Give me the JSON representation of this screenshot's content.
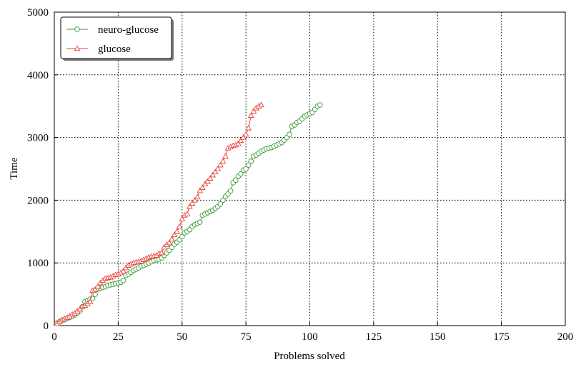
{
  "chart_data": {
    "type": "line",
    "xlabel": "Problems solved",
    "ylabel": "Time",
    "xlim": [
      0,
      200
    ],
    "ylim": [
      0,
      5000
    ],
    "xticks": [
      0,
      25,
      50,
      75,
      100,
      125,
      150,
      175,
      200
    ],
    "yticks": [
      0,
      1000,
      2000,
      3000,
      4000,
      5000
    ],
    "grid": true,
    "legend": "upper-left",
    "series": [
      {
        "name": "neuro-glucose",
        "color": "#3a9a3a",
        "marker": "circle",
        "x": [
          1,
          2,
          3,
          4,
          5,
          6,
          7,
          8,
          9,
          10,
          11,
          12,
          13,
          14,
          15,
          16,
          17,
          18,
          19,
          20,
          21,
          22,
          23,
          24,
          25,
          26,
          27,
          28,
          29,
          30,
          31,
          32,
          33,
          34,
          35,
          36,
          37,
          38,
          39,
          40,
          41,
          42,
          43,
          44,
          45,
          46,
          47,
          48,
          49,
          50,
          51,
          52,
          53,
          54,
          55,
          56,
          57,
          58,
          59,
          60,
          61,
          62,
          63,
          64,
          65,
          66,
          67,
          68,
          69,
          70,
          71,
          72,
          73,
          74,
          75,
          76,
          77,
          78,
          79,
          80,
          81,
          82,
          83,
          84,
          85,
          86,
          87,
          88,
          89,
          90,
          91,
          92,
          93,
          94,
          95,
          96,
          97,
          98,
          99,
          100,
          101,
          102,
          103,
          104
        ],
        "values": [
          40,
          60,
          80,
          95,
          110,
          130,
          150,
          170,
          200,
          230,
          300,
          380,
          400,
          420,
          430,
          500,
          580,
          600,
          610,
          620,
          640,
          650,
          660,
          670,
          680,
          690,
          720,
          800,
          820,
          850,
          880,
          900,
          920,
          950,
          960,
          980,
          1000,
          1020,
          1040,
          1050,
          1060,
          1080,
          1120,
          1160,
          1200,
          1250,
          1300,
          1330,
          1370,
          1420,
          1480,
          1500,
          1530,
          1580,
          1610,
          1630,
          1650,
          1760,
          1780,
          1800,
          1820,
          1840,
          1870,
          1900,
          1940,
          2000,
          2060,
          2100,
          2150,
          2280,
          2320,
          2380,
          2420,
          2480,
          2500,
          2560,
          2620,
          2700,
          2720,
          2750,
          2780,
          2800,
          2820,
          2830,
          2840,
          2860,
          2880,
          2900,
          2920,
          2960,
          3000,
          3050,
          3180,
          3200,
          3240,
          3260,
          3300,
          3340,
          3360,
          3380,
          3400,
          3450,
          3500,
          3520
        ]
      },
      {
        "name": "glucose",
        "color": "#e8413a",
        "marker": "triangle",
        "x": [
          1,
          2,
          3,
          4,
          5,
          6,
          7,
          8,
          9,
          10,
          11,
          12,
          13,
          14,
          15,
          16,
          17,
          18,
          19,
          20,
          21,
          22,
          23,
          24,
          25,
          26,
          27,
          28,
          29,
          30,
          31,
          32,
          33,
          34,
          35,
          36,
          37,
          38,
          39,
          40,
          41,
          42,
          43,
          44,
          45,
          46,
          47,
          48,
          49,
          50,
          51,
          52,
          53,
          54,
          55,
          56,
          57,
          58,
          59,
          60,
          61,
          62,
          63,
          64,
          65,
          66,
          67,
          68,
          69,
          70,
          71,
          72,
          73,
          74,
          75,
          76,
          77,
          78,
          79,
          80,
          81
        ],
        "values": [
          30,
          60,
          90,
          110,
          130,
          150,
          180,
          200,
          230,
          260,
          300,
          320,
          350,
          380,
          560,
          580,
          620,
          680,
          720,
          750,
          760,
          770,
          790,
          810,
          820,
          840,
          870,
          920,
          960,
          980,
          1000,
          1010,
          1020,
          1030,
          1050,
          1070,
          1090,
          1100,
          1110,
          1120,
          1150,
          1160,
          1250,
          1290,
          1320,
          1380,
          1450,
          1500,
          1580,
          1700,
          1760,
          1780,
          1900,
          1950,
          2000,
          2050,
          2150,
          2200,
          2260,
          2300,
          2350,
          2400,
          2450,
          2500,
          2560,
          2620,
          2700,
          2830,
          2850,
          2870,
          2880,
          2900,
          2950,
          3000,
          3050,
          3150,
          3350,
          3420,
          3470,
          3500,
          3520
        ]
      }
    ]
  }
}
